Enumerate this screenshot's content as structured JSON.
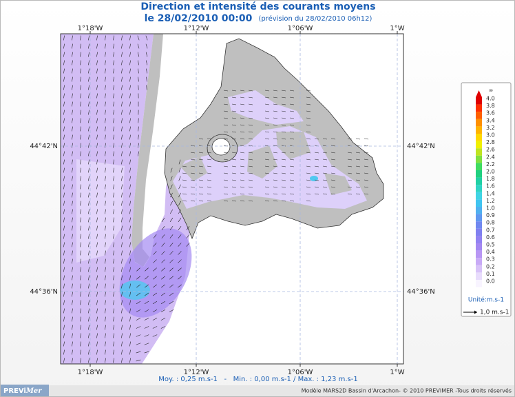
{
  "header": {
    "title": "Direction et intensité des courants moyens",
    "date": "le 28/02/2010 00:00",
    "forecast": "(prévision du 28/02/2010 06h12)"
  },
  "map": {
    "lon_labels": [
      "1°18'W",
      "1°12'W",
      "1°06'W",
      "1°W"
    ],
    "lat_labels": [
      "44°42'N",
      "44°36'N"
    ]
  },
  "legend": {
    "top_label": "∞",
    "top_color": "#e00000",
    "scale": [
      {
        "label": "4.0",
        "color": "#e00000"
      },
      {
        "label": "3.8",
        "color": "#ff3000"
      },
      {
        "label": "3.6",
        "color": "#ff6000"
      },
      {
        "label": "3.4",
        "color": "#ff9000"
      },
      {
        "label": "3.2",
        "color": "#ffb400"
      },
      {
        "label": "3.0",
        "color": "#ffd800"
      },
      {
        "label": "2.8",
        "color": "#f0f000"
      },
      {
        "label": "2.6",
        "color": "#c0e420"
      },
      {
        "label": "2.4",
        "color": "#80e040"
      },
      {
        "label": "2.2",
        "color": "#40dc60"
      },
      {
        "label": "2.0",
        "color": "#20d080"
      },
      {
        "label": "1.8",
        "color": "#20d0a4"
      },
      {
        "label": "1.6",
        "color": "#30d4c4"
      },
      {
        "label": "1.4",
        "color": "#40d4e4"
      },
      {
        "label": "1.2",
        "color": "#40c4f0"
      },
      {
        "label": "1.0",
        "color": "#50b0f0"
      },
      {
        "label": "0.9",
        "color": "#6098f0"
      },
      {
        "label": "0.8",
        "color": "#7088f0"
      },
      {
        "label": "0.7",
        "color": "#8080f0"
      },
      {
        "label": "0.6",
        "color": "#9282f2"
      },
      {
        "label": "0.5",
        "color": "#a488f2"
      },
      {
        "label": "0.4",
        "color": "#b896f4"
      },
      {
        "label": "0.3",
        "color": "#c8aaf6"
      },
      {
        "label": "0.2",
        "color": "#d8c2f8"
      },
      {
        "label": "0.1",
        "color": "#e8dcfc"
      },
      {
        "label": "0.0",
        "color": "#f8f4ff"
      }
    ],
    "unit": "Unité:m.s-1",
    "arrow_label": "1,0 m.s-1"
  },
  "stats": "Moy. : 0,25 m.s-1   -   Min. : 0,00 m.s-1 / Max. : 1,23 m.s-1",
  "logo": {
    "left": "PREVi",
    "right": "Mer"
  },
  "credit": "Modèle MARS2D Bassin d'Arcachon- © 2010 PREVIMER -Tous droits réservés"
}
